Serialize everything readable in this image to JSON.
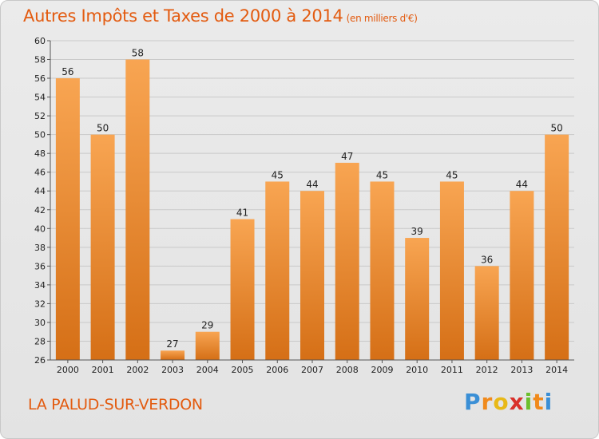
{
  "chart_data": {
    "type": "bar",
    "title": "Autres Impôts et Taxes de 2000 à 2014",
    "subtitle": "(en milliers d'€)",
    "categories": [
      "2000",
      "2001",
      "2002",
      "2003",
      "2004",
      "2005",
      "2006",
      "2007",
      "2008",
      "2009",
      "2010",
      "2011",
      "2012",
      "2013",
      "2014"
    ],
    "values": [
      56,
      50,
      58,
      27,
      29,
      41,
      45,
      44,
      47,
      45,
      39,
      45,
      36,
      44,
      50
    ],
    "ylim": [
      26,
      60
    ],
    "ytick_step": 2,
    "grid": true,
    "legend": "none",
    "bar_color_top": "#f8a552",
    "bar_color_bottom": "#d56f16"
  },
  "footer": {
    "place_name": "LA PALUD-SUR-VERDON"
  },
  "logo": {
    "letters": [
      "P",
      "r",
      "o",
      "x",
      "i",
      "t",
      "i"
    ],
    "colors": [
      "#3a8fd6",
      "#f08a1c",
      "#e8b917",
      "#d9302b",
      "#6cbf2d",
      "#f08a1c",
      "#3a8fd6"
    ]
  }
}
